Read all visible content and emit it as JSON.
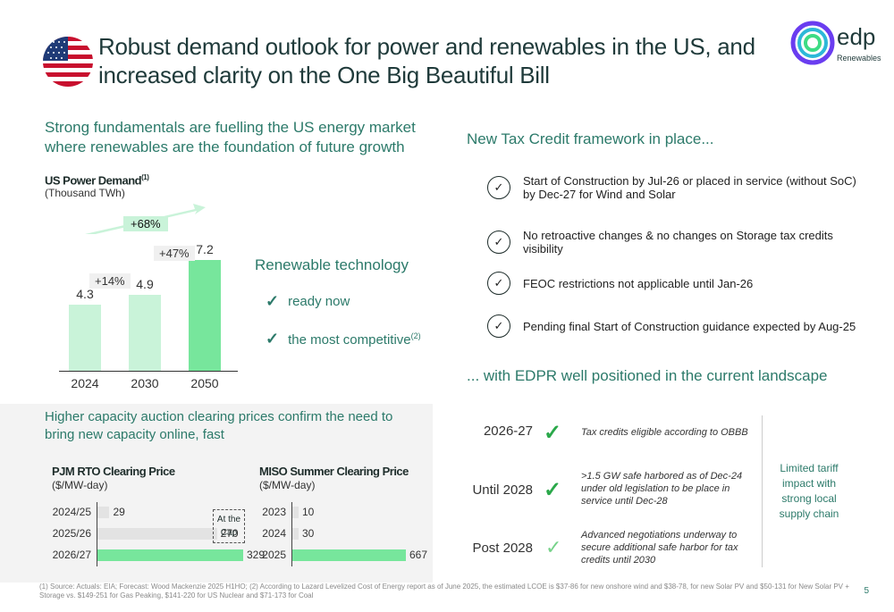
{
  "header": {
    "title": "Robust demand outlook for power and renewables in the US, and increased clarity on the One Big Beautiful Bill",
    "logo_text": "edp",
    "logo_sub": "Renewables"
  },
  "fundamentals": {
    "title": "Strong fundamentals are fuelling the US energy market where renewables are the foundation of future growth",
    "chart_title": "US Power Demand",
    "chart_note_ref": "(1)",
    "chart_unit": "(Thousand TWh)"
  },
  "renewable": {
    "title": "Renewable technology",
    "items": [
      {
        "label": "ready now",
        "ref": ""
      },
      {
        "label": "the most competitive",
        "ref": "(2)"
      }
    ]
  },
  "tax_credit": {
    "title": "New Tax Credit framework in place...",
    "items": [
      "Start of Construction by Jul-26 or placed in service (without SoC) by Dec-27 for Wind and Solar",
      "No retroactive changes & no changes on Storage tax credits visibility",
      "FEOC restrictions not applicable until Jan-26",
      "Pending final Start of Construction guidance expected by Aug-25"
    ]
  },
  "positioning": {
    "title": "... with EDPR well positioned in the current landscape",
    "rows": [
      {
        "period": "2026-27",
        "desc": "Tax credits eligible according to OBBB"
      },
      {
        "period": "Until 2028",
        "desc": "&gt;1.5 GW safe harbored as of Dec-24 under old legislation to be place in service until Dec-28"
      },
      {
        "period": "Post 2028",
        "desc": "Advanced negotiations underway to secure additional safe harbor for tax credits until 2030"
      }
    ],
    "side_note": "Limited tariff impact with strong local supply chain"
  },
  "capacity": {
    "title": "Higher capacity auction clearing prices confirm the need to bring new capacity online, fast",
    "cap_note": "At the Cap"
  },
  "chart_data": [
    {
      "type": "bar",
      "title": "US Power Demand",
      "ylabel": "(Thousand TWh)",
      "categories": [
        "2024",
        "2030",
        "2050"
      ],
      "values": [
        4.3,
        4.9,
        7.2
      ],
      "value_labels": [
        "4.3",
        "4.9",
        "7.2"
      ],
      "annotations": [
        "+14%",
        "+47%",
        "+68%"
      ],
      "ylim": [
        0,
        8
      ]
    },
    {
      "type": "bar",
      "title": "PJM RTO Clearing Price",
      "ylabel": "($/MW-day)",
      "categories": [
        "2024/25",
        "2025/26",
        "2026/27"
      ],
      "values": [
        29,
        270,
        329
      ],
      "value_labels": [
        "29",
        "270",
        "329"
      ],
      "xlim": [
        0,
        329
      ]
    },
    {
      "type": "bar",
      "title": "MISO Summer Clearing Price",
      "ylabel": "($/MW-day)",
      "categories": [
        "2023",
        "2024",
        "2025"
      ],
      "values": [
        10,
        30,
        667
      ],
      "value_labels": [
        "10",
        "30",
        "667"
      ],
      "xlim": [
        0,
        667
      ]
    }
  ],
  "footnote": "(1) Source: Actuals: EIA; Forecast: Wood Mackenzie 2025 H1HO; (2) According to Lazard Levelized Cost of Energy report as of June 2025, the estimated LCOE is $37-86 for new onshore wind and $38-78, for new Solar PV and $50-131 for New Solar PV + Storage vs. $149-251 for Gas Peaking, $141-220 for US Nuclear and $71-173 for Coal",
  "page_number": "5",
  "colors": {
    "accent": "#2c7a6a",
    "green_bright": "#77e69c",
    "green_light": "#c9f3d9"
  }
}
